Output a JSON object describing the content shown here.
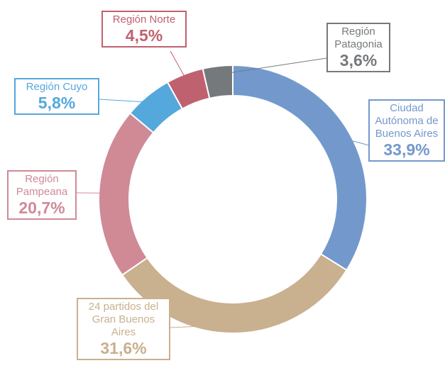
{
  "chart_data": {
    "type": "donut",
    "categories": [
      "Ciudad Autónoma de Buenos Aires",
      "24 partidos del Gran Buenos Aires",
      "Región Pampeana",
      "Región Cuyo",
      "Región Norte",
      "Región Patagonia"
    ],
    "values": [
      33.9,
      31.6,
      20.7,
      5.8,
      4.5,
      3.6
    ],
    "value_labels": [
      "33,9%",
      "31,6%",
      "20,7%",
      "5,8%",
      "4,5%",
      "3,6%"
    ],
    "colors": [
      "#7399cc",
      "#c9b08f",
      "#cf8a96",
      "#55a8dc",
      "#c0616f",
      "#76797c"
    ]
  }
}
